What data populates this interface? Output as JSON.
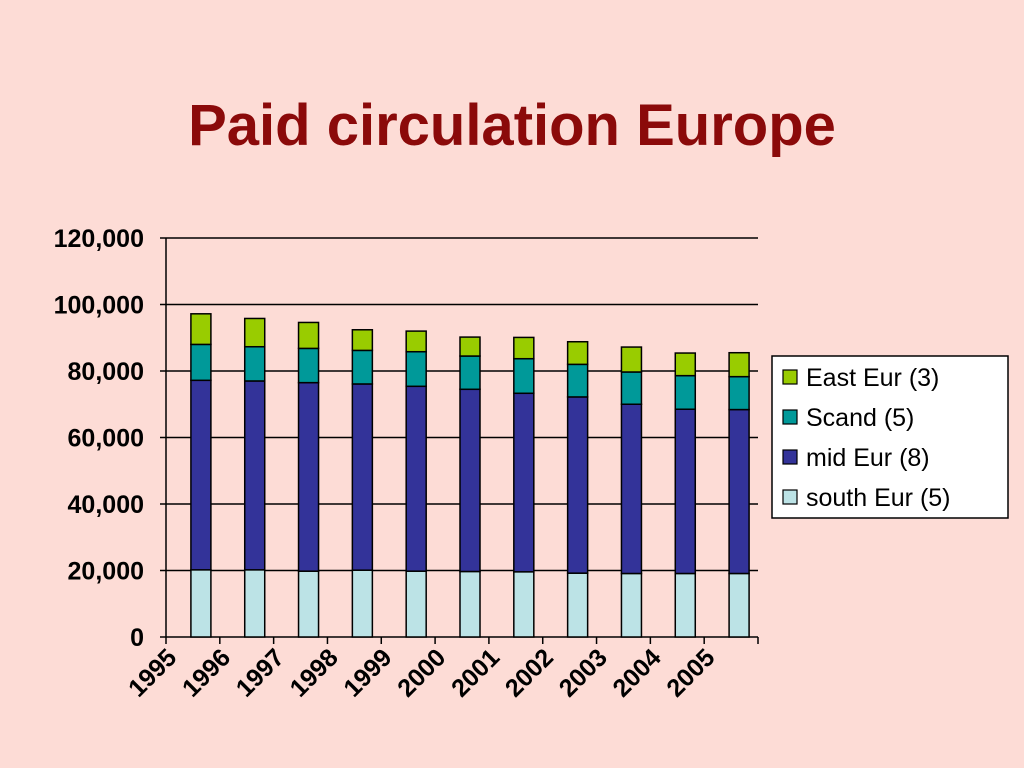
{
  "slide": {
    "title": "Paid circulation Europe"
  },
  "colors": {
    "background": "#FDDCD6",
    "title": "#8B0A0A",
    "east": "#99CC00",
    "scand": "#009999",
    "mid": "#333399",
    "south": "#BCE3E6"
  },
  "chart_data": {
    "type": "bar",
    "stacked": true,
    "title": "Paid circulation Europe",
    "xlabel": "",
    "ylabel": "",
    "ylim": [
      0,
      120000
    ],
    "yticks": [
      0,
      20000,
      40000,
      60000,
      80000,
      100000,
      120000
    ],
    "ytick_labels": [
      "0",
      "20,000",
      "40,000",
      "60,000",
      "80,000",
      "100,000",
      "120,000"
    ],
    "grid": true,
    "legend_position": "right",
    "categories": [
      "1995",
      "1996",
      "1997",
      "1998",
      "1999",
      "2000",
      "2001",
      "2002",
      "2003",
      "2004",
      "2005"
    ],
    "series": [
      {
        "name": "south Eur (5)",
        "color": "#BCE3E6",
        "values": [
          20200,
          20200,
          19800,
          20100,
          19800,
          19700,
          19600,
          19200,
          19100,
          19100,
          19100
        ]
      },
      {
        "name": "mid Eur (8)",
        "color": "#333399",
        "values": [
          57000,
          56800,
          56700,
          56000,
          55600,
          54800,
          53700,
          53000,
          50900,
          49400,
          49300
        ]
      },
      {
        "name": "Scand (5)",
        "color": "#009999",
        "values": [
          10800,
          10300,
          10300,
          10100,
          10400,
          10000,
          10400,
          9800,
          9700,
          10100,
          9900
        ]
      },
      {
        "name": "East Eur (3)",
        "color": "#99CC00",
        "values": [
          9200,
          8500,
          7800,
          6200,
          6200,
          5700,
          6400,
          6800,
          7500,
          6800,
          7200
        ]
      }
    ],
    "legend_order": [
      "East Eur (3)",
      "Scand (5)",
      "mid Eur (8)",
      "south Eur (5)"
    ]
  }
}
